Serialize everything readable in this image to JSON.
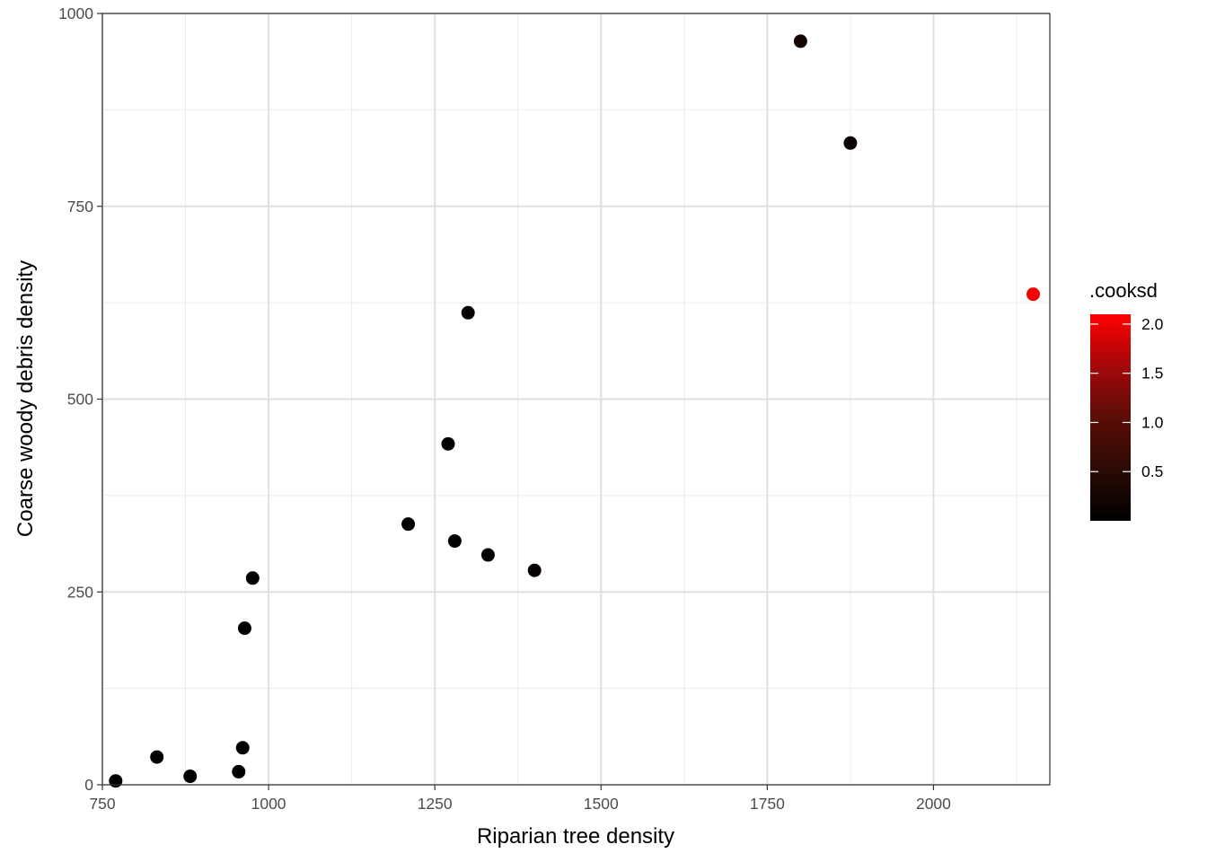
{
  "chart_data": {
    "type": "scatter",
    "title": "",
    "xlabel": "Riparian tree density",
    "ylabel": "Coarse woody debris density",
    "xlim": [
      750,
      2175
    ],
    "ylim": [
      0,
      1000
    ],
    "x_ticks": [
      750,
      1000,
      1250,
      1500,
      1750,
      2000
    ],
    "y_ticks": [
      0,
      250,
      500,
      750,
      1000
    ],
    "grid": true,
    "color_scale": {
      "title": ".cooksd",
      "low_color": "#000000",
      "high_color": "#ff0000",
      "range": [
        0.0,
        2.1
      ],
      "ticks": [
        0.5,
        1.0,
        1.5,
        2.0
      ],
      "tick_labels": [
        "0.5",
        "1.0",
        "1.5",
        "2.0"
      ],
      "legend_position": "right"
    },
    "points": [
      {
        "x": 1800,
        "y": 964,
        "cooksd": 0.25
      },
      {
        "x": 1875,
        "y": 832,
        "cooksd": 0.08
      },
      {
        "x": 2150,
        "y": 636,
        "cooksd": 2.05
      },
      {
        "x": 1300,
        "y": 612,
        "cooksd": 0.06
      },
      {
        "x": 1270,
        "y": 442,
        "cooksd": 0.02
      },
      {
        "x": 1210,
        "y": 338,
        "cooksd": 0.02
      },
      {
        "x": 1280,
        "y": 316,
        "cooksd": 0.01
      },
      {
        "x": 1330,
        "y": 298,
        "cooksd": 0.02
      },
      {
        "x": 1400,
        "y": 278,
        "cooksd": 0.05
      },
      {
        "x": 976,
        "y": 268,
        "cooksd": 0.04
      },
      {
        "x": 964,
        "y": 203,
        "cooksd": 0.02
      },
      {
        "x": 961,
        "y": 48,
        "cooksd": 0.01
      },
      {
        "x": 832,
        "y": 36,
        "cooksd": 0.01
      },
      {
        "x": 955,
        "y": 17,
        "cooksd": 0.01
      },
      {
        "x": 882,
        "y": 11,
        "cooksd": 0.01
      },
      {
        "x": 770,
        "y": 5,
        "cooksd": 0.02
      }
    ]
  }
}
